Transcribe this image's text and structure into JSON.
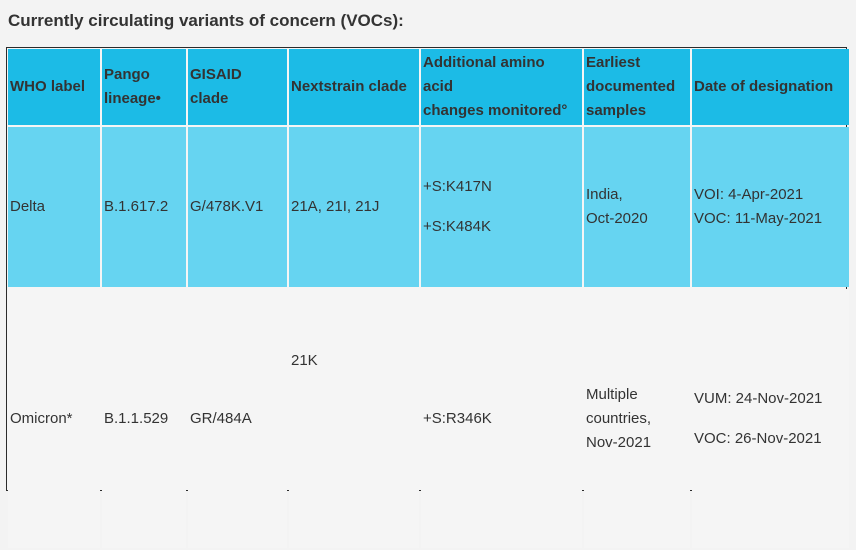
{
  "heading": "Currently circulating variants of concern (VOCs):",
  "headers": {
    "who_label": "WHO label",
    "pango_lineage_line1": "Pango",
    "pango_lineage_line2": "lineage•",
    "gisaid_line1": "GISAID",
    "gisaid_line2": "clade",
    "nextstrain": "Nextstrain clade",
    "amino_line1": "Additional amino",
    "amino_line2": "acid",
    "amino_line3": "changes monitored°",
    "earliest_line1": "Earliest",
    "earliest_line2": "documented",
    "earliest_line3": "samples",
    "date": "Date of designation"
  },
  "rows": [
    {
      "who_label": "Delta",
      "pango": "B.1.617.2",
      "gisaid": "G/478K.V1",
      "nextstrain": "21A, 21I, 21J",
      "amino_1": "+S:K417N",
      "amino_2": "+S:K484K",
      "earliest_1": "India,",
      "earliest_2": "Oct-2020",
      "date_1": "VOI: 4-Apr-2021",
      "date_2": "VOC: 11-May-2021"
    },
    {
      "who_label": "Omicron*",
      "pango": "B.1.1.529",
      "gisaid": "GR/484A",
      "nextstrain": "21K",
      "amino_1": "+S:R346K",
      "earliest_1": "Multiple",
      "earliest_2": "countries,",
      "earliest_3": "Nov-2021",
      "date_1": "VUM: 24-Nov-2021",
      "date_2": "VOC: 26-Nov-2021"
    }
  ],
  "colors": {
    "header_bg": "#1cbbe6",
    "delta_row_bg": "#66d4f1",
    "omicron_row_bg": "#f5f5f5",
    "text": "#333333"
  }
}
